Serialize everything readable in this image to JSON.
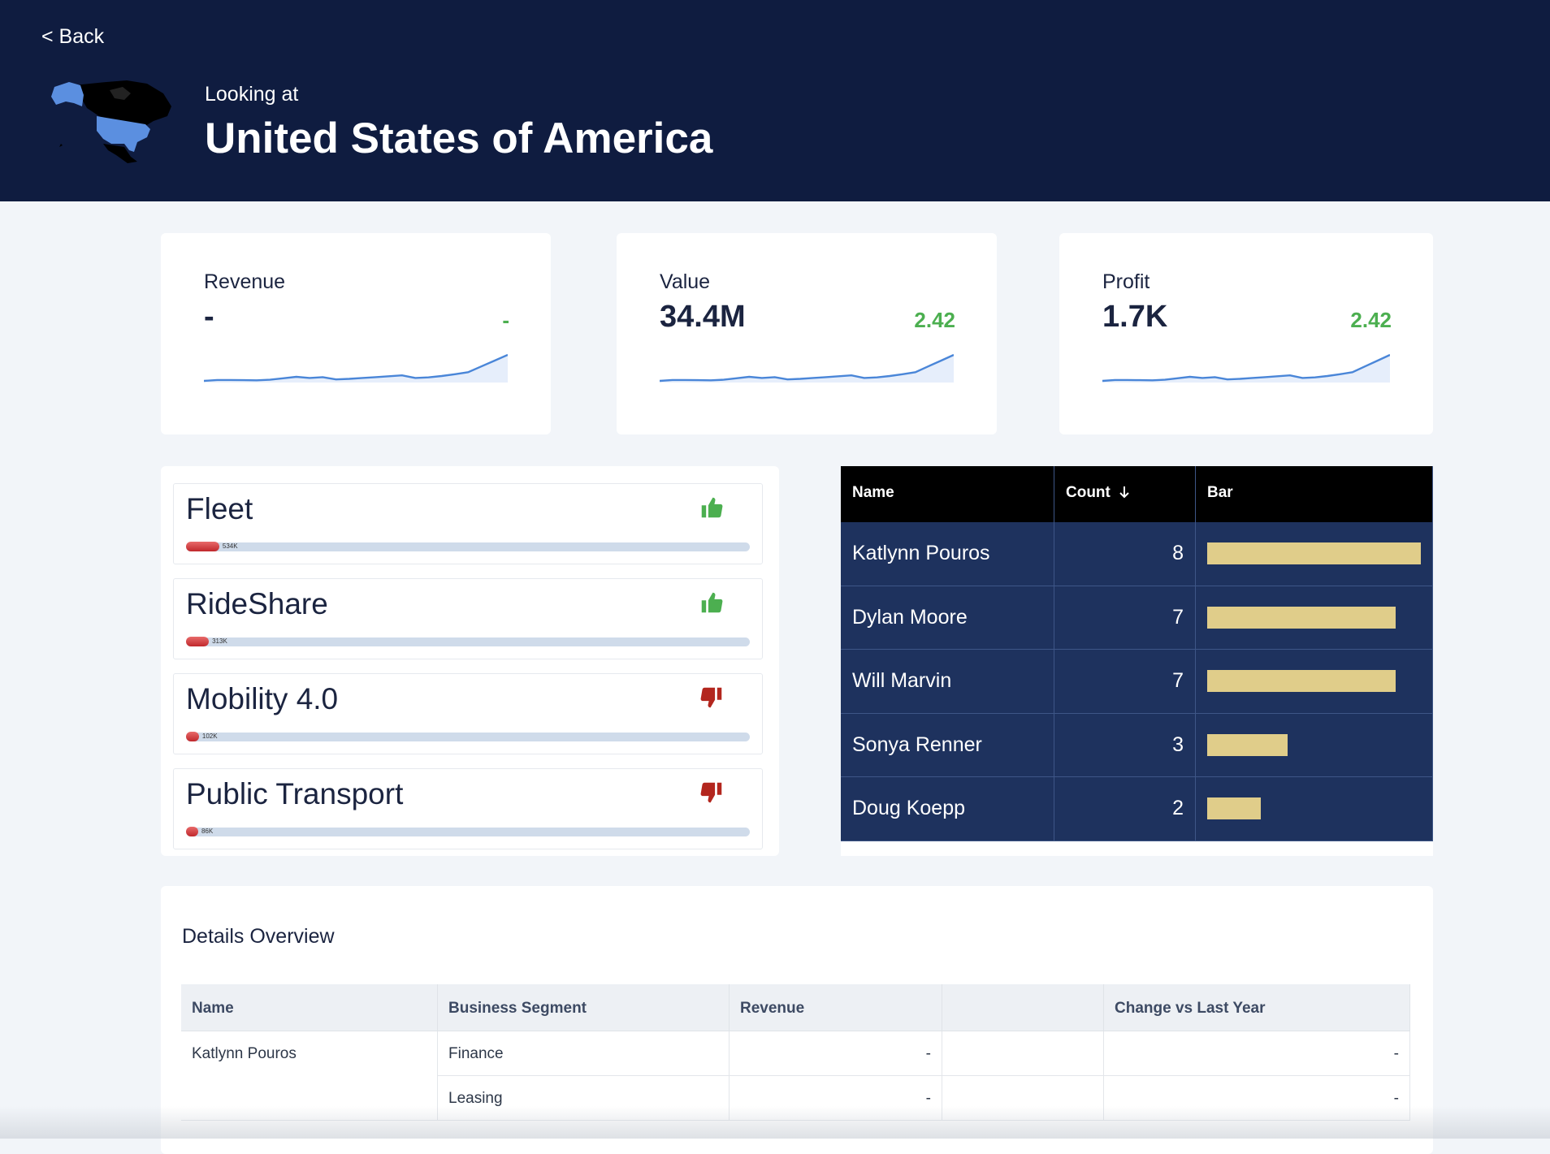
{
  "header": {
    "back": "< Back",
    "subtitle": "Looking at",
    "title": "United States of America"
  },
  "kpis": [
    {
      "label": "Revenue",
      "value": "-",
      "change": "-",
      "trend": [
        10,
        10.6,
        10.6,
        10.5,
        10.4,
        10.8,
        11.8,
        12.8,
        12,
        12.6,
        11,
        11.4,
        12,
        12.6,
        13.2,
        13.8,
        12,
        12.4,
        13.4,
        14.6,
        16,
        20,
        24,
        28
      ]
    },
    {
      "label": "Value",
      "value": "34.4M",
      "change": "2.42",
      "trend": [
        10,
        10.6,
        10.6,
        10.5,
        10.4,
        10.8,
        11.8,
        12.8,
        12,
        12.6,
        11,
        11.4,
        12,
        12.6,
        13.2,
        13.8,
        12,
        12.4,
        13.4,
        14.6,
        16,
        20,
        24,
        28
      ]
    },
    {
      "label": "Profit",
      "value": "1.7K",
      "change": "2.42",
      "trend": [
        10,
        10.6,
        10.6,
        10.5,
        10.4,
        10.8,
        11.8,
        12.8,
        12,
        12.6,
        11,
        11.4,
        12,
        12.6,
        13.2,
        13.8,
        12,
        12.4,
        13.4,
        14.6,
        16,
        20,
        24,
        28
      ]
    }
  ],
  "segments": {
    "range": [
      0,
      12000000
    ],
    "items": [
      {
        "name": "Fleet",
        "value": 534000,
        "value_label": "534K",
        "trend": "up"
      },
      {
        "name": "RideShare",
        "value": 313000,
        "value_label": "313K",
        "trend": "up"
      },
      {
        "name": "Mobility 4.0",
        "value": 102000,
        "value_label": "102K",
        "trend": "down"
      },
      {
        "name": "Public Transport",
        "value": 86000,
        "value_label": "86K",
        "trend": "down"
      }
    ]
  },
  "ranking": {
    "columns": [
      "Name",
      "Count",
      "Bar"
    ],
    "rows": [
      {
        "name": "Katlynn Pouros",
        "count": 8
      },
      {
        "name": "Dylan Moore",
        "count": 7
      },
      {
        "name": "Will Marvin",
        "count": 7
      },
      {
        "name": "Sonya Renner",
        "count": 3
      },
      {
        "name": "Doug Koepp",
        "count": 2
      }
    ]
  },
  "details": {
    "title": "Details Overview",
    "columns": [
      "Name",
      "Business Segment",
      "Revenue",
      "Change vs Last Year"
    ],
    "groups": [
      {
        "name": "Katlynn Pouros",
        "rows": [
          {
            "segment": "Finance",
            "revenue": "-",
            "change": "-"
          },
          {
            "segment": "Leasing",
            "revenue": "-",
            "change": "-"
          }
        ]
      }
    ]
  }
}
